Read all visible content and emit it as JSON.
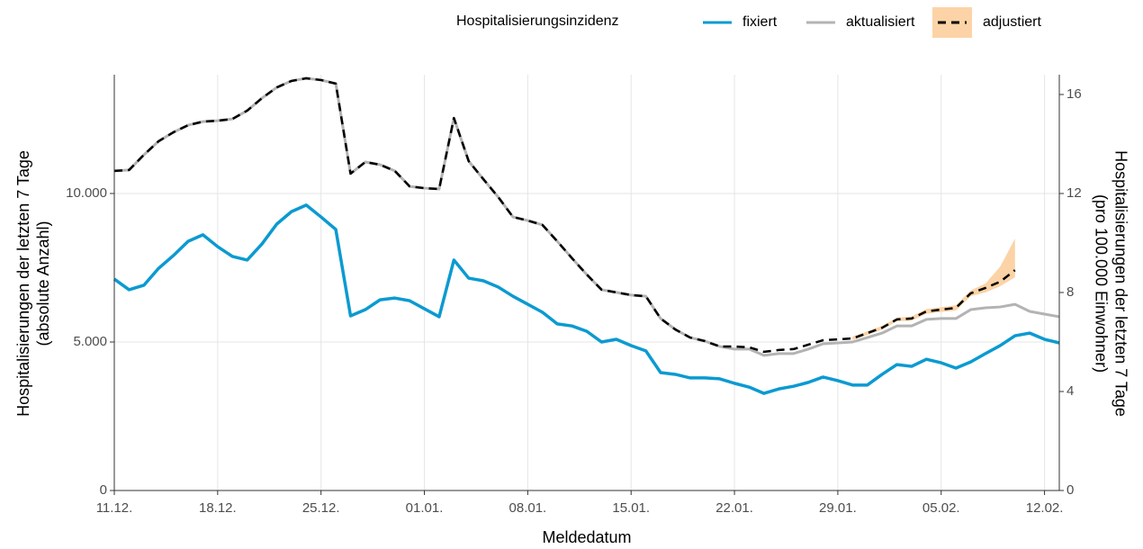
{
  "chart_data": {
    "type": "line",
    "legend_title": "Hospitalisierungsinzidenz",
    "xlabel": "Meldedatum",
    "ylabel": [
      "Hospitalisierungen der letzten 7 Tage",
      "(absolute Anzahl)"
    ],
    "y2label": [
      "Hospitalisierungen der letzten 7 Tage",
      "(pro 100.000 Einwohner)"
    ],
    "categories": [
      "11.12.",
      null,
      null,
      null,
      null,
      null,
      null,
      "18.12.",
      null,
      null,
      null,
      null,
      null,
      null,
      "25.12.",
      null,
      null,
      null,
      null,
      null,
      null,
      "01.01.",
      null,
      null,
      null,
      null,
      null,
      null,
      "08.01.",
      null,
      null,
      null,
      null,
      null,
      null,
      "15.01.",
      null,
      null,
      null,
      null,
      null,
      null,
      "22.01.",
      null,
      null,
      null,
      null,
      null,
      null,
      "29.01.",
      null,
      null,
      null,
      null,
      null,
      null,
      "05.02.",
      null,
      null,
      null,
      null,
      null,
      null,
      "12.02.",
      null
    ],
    "ylim": [
      0,
      14000
    ],
    "yticks": [
      0,
      {
        "value": 5000,
        "label": "5.000"
      },
      {
        "value": 10000,
        "label": "10.000"
      }
    ],
    "y2lim": [
      0,
      16.8
    ],
    "y2ticks": [
      0,
      4,
      8,
      12,
      16
    ],
    "grid": true,
    "legend_position": "top",
    "series": [
      {
        "name": "aktualisiert",
        "color": "#b3b3b3",
        "values": [
          10760,
          10790,
          11300,
          11760,
          12060,
          12300,
          12420,
          12450,
          12510,
          12790,
          13210,
          13570,
          13790,
          13880,
          13820,
          13700,
          10670,
          11060,
          10970,
          10760,
          10240,
          10180,
          10150,
          12540,
          11090,
          10480,
          9880,
          9210,
          9090,
          8940,
          8390,
          7820,
          7270,
          6760,
          6670,
          6580,
          6540,
          5790,
          5420,
          5150,
          5030,
          4850,
          4760,
          4760,
          4550,
          4610,
          4610,
          4760,
          4940,
          4970,
          5000,
          5150,
          5300,
          5540,
          5540,
          5760,
          5790,
          5790,
          6090,
          6150,
          6180,
          6270,
          6030,
          5940,
          5850
        ]
      },
      {
        "name": "fixiert",
        "color": "#0b9ad1",
        "values": [
          7120,
          6760,
          6910,
          7480,
          7910,
          8390,
          8610,
          8210,
          7880,
          7760,
          8300,
          8970,
          9390,
          9610,
          9210,
          8790,
          5880,
          6090,
          6420,
          6480,
          6390,
          6120,
          5850,
          7760,
          7150,
          7060,
          6850,
          6540,
          6270,
          6000,
          5610,
          5540,
          5360,
          5000,
          5090,
          4880,
          4700,
          3970,
          3910,
          3790,
          3790,
          3760,
          3610,
          3480,
          3270,
          3420,
          3510,
          3640,
          3820,
          3700,
          3550,
          3550,
          3910,
          4240,
          4180,
          4420,
          4300,
          4120,
          4330,
          4610,
          4880,
          5210,
          5300,
          5090,
          4970
        ]
      },
      {
        "name": "adjustiert",
        "color": "#000000",
        "band_color": "#fbd3a6",
        "values": [
          10760,
          10790,
          11300,
          11760,
          12060,
          12300,
          12420,
          12450,
          12510,
          12790,
          13210,
          13570,
          13790,
          13880,
          13820,
          13700,
          10670,
          11060,
          10970,
          10760,
          10240,
          10180,
          10150,
          12540,
          11090,
          10480,
          9880,
          9210,
          9090,
          8940,
          8390,
          7820,
          7270,
          6760,
          6670,
          6580,
          6540,
          5790,
          5420,
          5150,
          5030,
          4850,
          4850,
          4820,
          4670,
          4730,
          4760,
          4910,
          5060,
          5090,
          5120,
          5300,
          5480,
          5760,
          5790,
          6030,
          6090,
          6150,
          6640,
          6820,
          7030,
          7420,
          null,
          null,
          null
        ],
        "lower": [
          null,
          null,
          null,
          null,
          null,
          null,
          null,
          null,
          null,
          null,
          null,
          null,
          null,
          null,
          null,
          null,
          null,
          null,
          null,
          null,
          null,
          null,
          null,
          null,
          null,
          null,
          null,
          null,
          null,
          null,
          null,
          null,
          null,
          null,
          null,
          null,
          null,
          null,
          null,
          null,
          null,
          null,
          null,
          null,
          null,
          null,
          null,
          null,
          null,
          null,
          5060,
          5240,
          5420,
          5700,
          5720,
          5950,
          6010,
          6060,
          6540,
          6670,
          6880,
          7180,
          null,
          null,
          null
        ],
        "upper": [
          null,
          null,
          null,
          null,
          null,
          null,
          null,
          null,
          null,
          null,
          null,
          null,
          null,
          null,
          null,
          null,
          null,
          null,
          null,
          null,
          null,
          null,
          null,
          null,
          null,
          null,
          null,
          null,
          null,
          null,
          null,
          null,
          null,
          null,
          null,
          null,
          null,
          null,
          null,
          null,
          null,
          null,
          null,
          null,
          null,
          null,
          null,
          null,
          null,
          null,
          5180,
          5360,
          5540,
          5820,
          5860,
          6110,
          6170,
          6240,
          6740,
          6970,
          7540,
          8480,
          null,
          null,
          null
        ]
      }
    ]
  }
}
